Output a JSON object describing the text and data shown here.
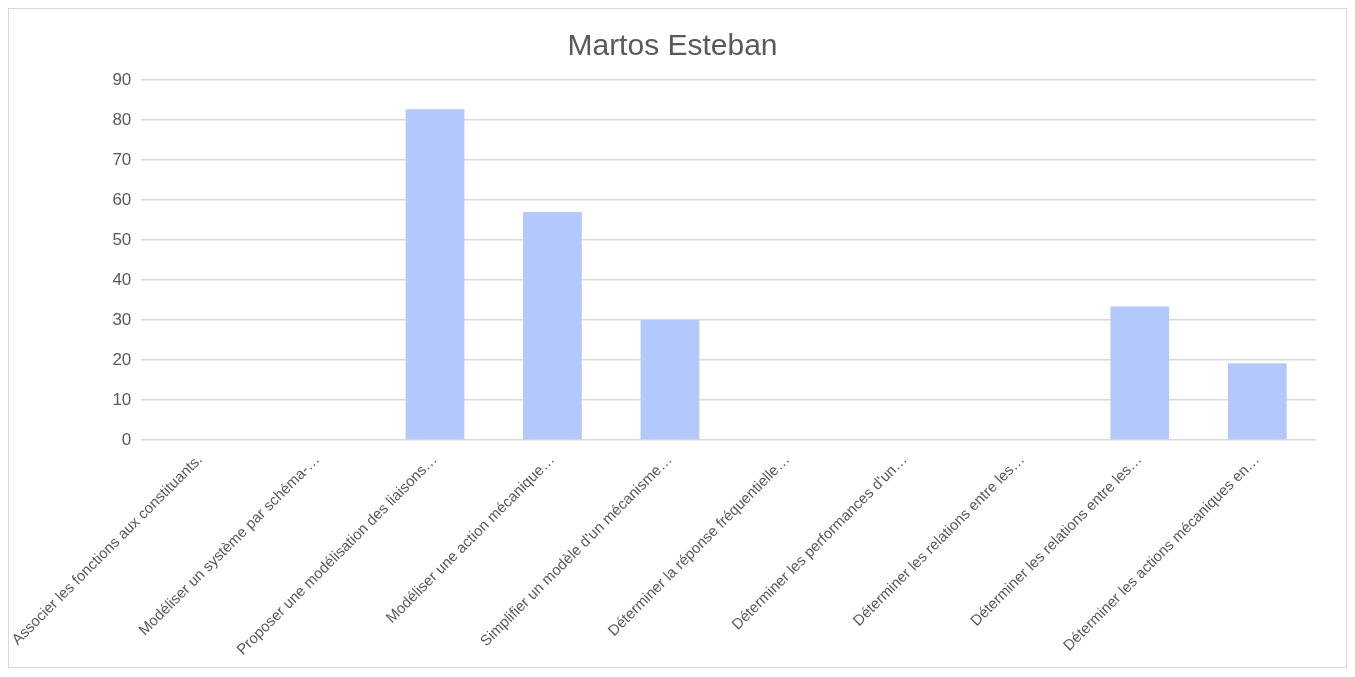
{
  "chart_data": {
    "type": "bar",
    "title": "Martos Esteban",
    "categories": [
      "Associer les fonctions aux constituants.",
      "Modéliser un système par schéma-…",
      "Proposer une modélisation des liaisons…",
      "Modéliser une action mécanique…",
      "Simplifier un modèle d'un mécanisme…",
      "Déterminer la réponse fréquentielle…",
      "Déterminer les performances d'un…",
      "Déterminer les relations entre les…",
      "Déterminer les relations entre les…",
      "Déterminer les actions mécaniques en…"
    ],
    "values": [
      0,
      0,
      82.7,
      57,
      30,
      0,
      0,
      0,
      33.4,
      19.2
    ],
    "color": "#b4c9fb",
    "ylim": [
      0,
      90
    ],
    "yticks": [
      0,
      10,
      20,
      30,
      40,
      50,
      60,
      70,
      80,
      90
    ],
    "grid": "y",
    "legend": false
  }
}
